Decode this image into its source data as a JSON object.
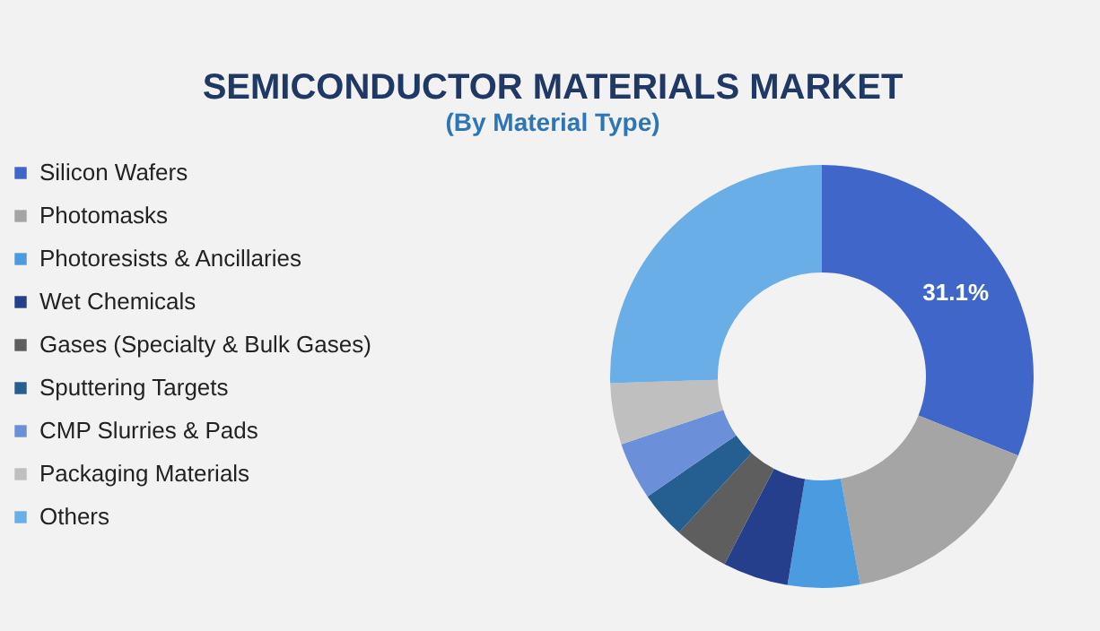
{
  "chart_data": {
    "type": "donut",
    "title": "SEMICONDUCTOR MATERIALS MARKET",
    "subtitle": "(By Material Type)",
    "categories": [
      "Silicon Wafers",
      "Photomasks",
      "Photoresists & Ancillaries",
      "Wet Chemicals",
      "Gases (Specialty & Bulk Gases)",
      "Sputtering Targets",
      "CMP Slurries & Pads",
      "Packaging Materials",
      "Others"
    ],
    "values": [
      31.1,
      16,
      5.5,
      5,
      4.2,
      3.6,
      4.4,
      4.7,
      25.5
    ],
    "colors": [
      "#3f66c8",
      "#a5a5a5",
      "#4a9be0",
      "#263f8c",
      "#5e5e5e",
      "#255e91",
      "#6b8fd8",
      "#bfbfbf",
      "#6aaee8"
    ],
    "value_labels": [
      "31.1%",
      null,
      null,
      null,
      null,
      null,
      null,
      null,
      null
    ],
    "legend": "left"
  }
}
